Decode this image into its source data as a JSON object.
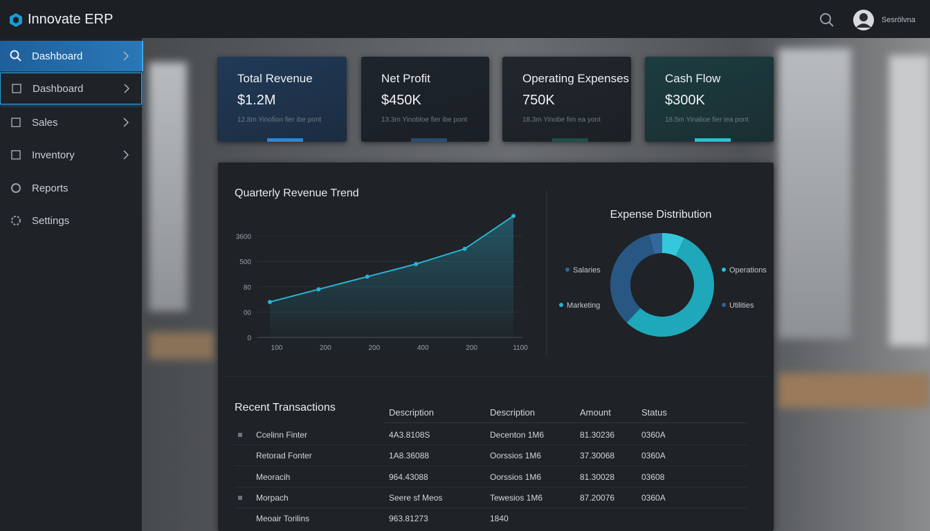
{
  "header": {
    "app_name": "Innovate ERP",
    "user_name": "Sesrölvna"
  },
  "sidebar": {
    "items": [
      "Dashboard",
      "Dashboard",
      "Sales",
      "Inventory",
      "Reports",
      "Settings"
    ]
  },
  "kpis": [
    {
      "title": "Total Revenue",
      "value": "$1.2M",
      "note": "12.8m Yinofion fier ibe pont"
    },
    {
      "title": "Net Profit",
      "value": "$450K",
      "note": "13.3m Yinobloe fier ibe pont"
    },
    {
      "title": "Operating Expenses",
      "value": "750K",
      "note": "18.3m Yinobe fim ea yont"
    },
    {
      "title": "Cash Flow",
      "value": "$300K",
      "note": "18.5m Yinalioe fier iea pont"
    }
  ],
  "chart_data": [
    {
      "type": "line",
      "title": "Quarterly Revenue Trend",
      "categories": [
        "100",
        "200",
        "200",
        "400",
        "200",
        "1100"
      ],
      "values": [
        1.4,
        1.9,
        2.4,
        2.9,
        3.5,
        4.8
      ],
      "color": "#2bb3d6",
      "ylim": [
        0,
        5
      ],
      "yticks": [
        {
          "value": 0,
          "label": "0"
        },
        {
          "value": 1,
          "label": "00"
        },
        {
          "value": 2,
          "label": "80"
        },
        {
          "value": 3,
          "label": "500"
        },
        {
          "value": 4,
          "label": "3600"
        }
      ],
      "grid": true
    },
    {
      "type": "pie",
      "title": "Expense Distribution",
      "categories": [
        "Operations",
        "Marketing",
        "Salaries",
        "Utilities"
      ],
      "values": [
        7,
        55,
        34,
        4
      ],
      "colors": [
        "#35c8dc",
        "#1fa8ba",
        "#285783",
        "#34689a"
      ],
      "legend_colors": [
        "#2bc0d6",
        "#22b6cc",
        "#2f6594",
        "#2f6594"
      ]
    }
  ],
  "table": {
    "title": "Recent Transactions",
    "headers": [
      "Description",
      "Description",
      "Amount",
      "Status"
    ],
    "rows": [
      [
        "Ccelinn Finter",
        "4A3.8108S",
        "Decenton 1M6",
        "81.30236",
        "0360A"
      ],
      [
        "Retorad Fonter",
        "1A8.36088",
        "Oorssios 1M6",
        "37.30068",
        "0360A"
      ],
      [
        "Meoracih",
        "964.43088",
        "Oorssios 1M6",
        "81.30028",
        "03608"
      ],
      [
        "Morpach",
        "Seere sf Meos",
        "Tewesios 1M6",
        "87.20076",
        "0360A"
      ],
      [
        "Meoair Torilins",
        "963.81273",
        "1840"
      ]
    ]
  }
}
